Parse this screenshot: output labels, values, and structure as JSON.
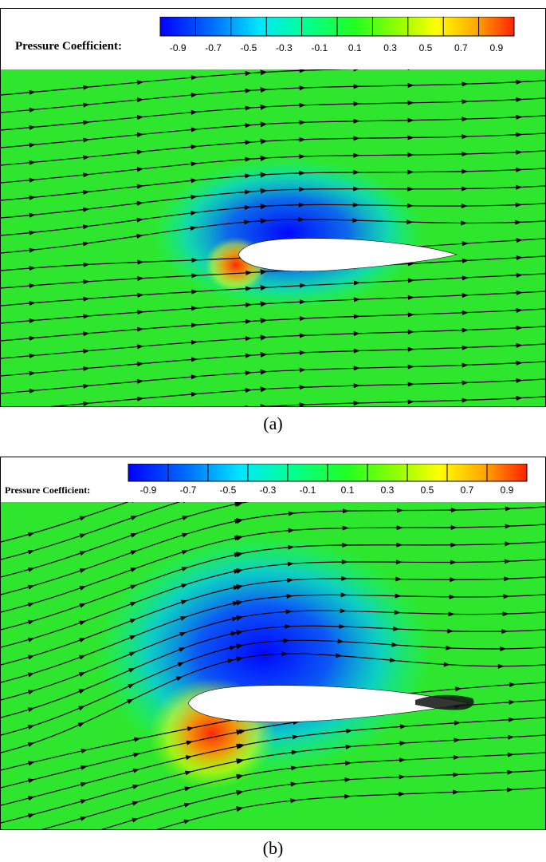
{
  "figure": {
    "panels": [
      {
        "id": "a",
        "caption": "(a)",
        "legend_title": "Pressure Coefficient:",
        "colorbar_ticks": [
          "-0.9",
          "-0.7",
          "-0.5",
          "-0.3",
          "-0.1",
          "0.1",
          "0.3",
          "0.5",
          "0.7",
          "0.9"
        ]
      },
      {
        "id": "b",
        "caption": "(b)",
        "legend_title": "Pressure Coefficient:",
        "colorbar_ticks": [
          "-0.9",
          "-0.7",
          "-0.5",
          "-0.3",
          "-0.1",
          "0.1",
          "0.3",
          "0.5",
          "0.7",
          "0.9"
        ]
      }
    ],
    "colormap": [
      "#0000ff",
      "#0066ff",
      "#00ccff",
      "#00ffcc",
      "#00ff66",
      "#33ff00",
      "#99ff00",
      "#ffff00",
      "#ff9900",
      "#ff3300"
    ],
    "field_color": "#2ee62e"
  }
}
